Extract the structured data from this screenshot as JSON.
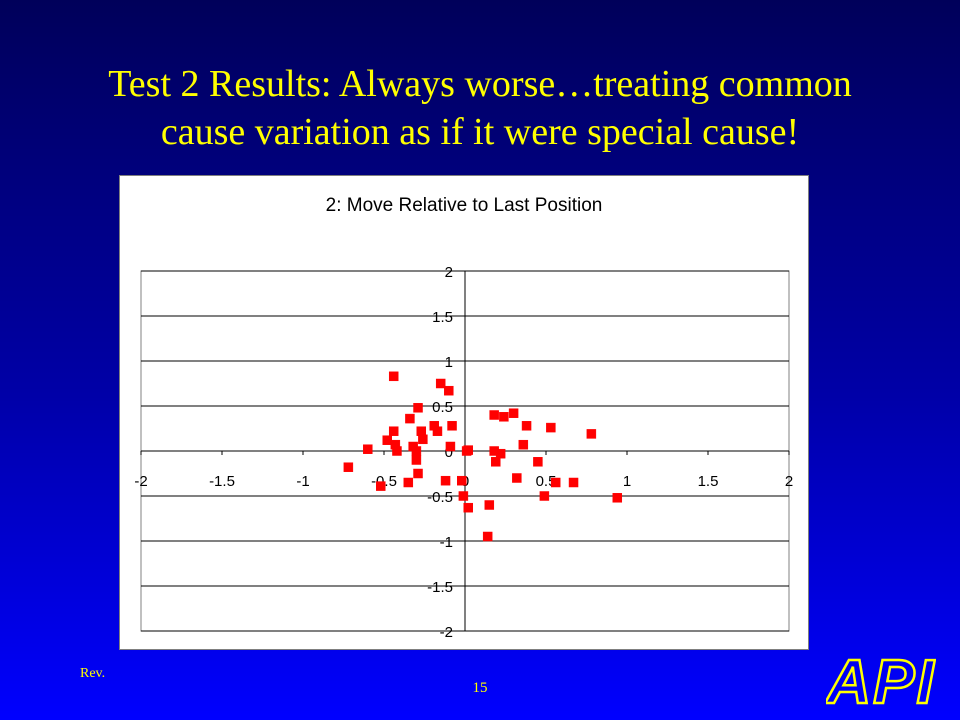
{
  "slide": {
    "title_line1": "Test 2 Results: Always worse…treating common",
    "title_line2": "cause variation as if it were special cause!",
    "footer_rev": "Rev.",
    "page_number": "15",
    "logo_text": "API",
    "title_color": "#ffff00",
    "background_top": "#00005a",
    "background_bottom": "#0000ff"
  },
  "chart_data": {
    "type": "scatter",
    "title": "2: Move Relative to Last Position",
    "xlabel": "",
    "ylabel": "",
    "xlim": [
      -2,
      2
    ],
    "ylim": [
      -2,
      2
    ],
    "x_ticks": [
      "-2",
      "-1.5",
      "-1",
      "-0.5",
      "0",
      "0.5",
      "1",
      "1.5",
      "2"
    ],
    "y_ticks": [
      "2",
      "1.5",
      "1",
      "0.5",
      "0",
      "-0.5",
      "-1",
      "-1.5",
      "-2"
    ],
    "grid": "horizontal",
    "marker_color": "#ff0000",
    "marker": "square",
    "series": [
      {
        "points": [
          [
            -0.72,
            -0.18
          ],
          [
            -0.6,
            0.02
          ],
          [
            -0.52,
            -0.39
          ],
          [
            -0.48,
            0.12
          ],
          [
            -0.44,
            0.83
          ],
          [
            -0.44,
            0.22
          ],
          [
            -0.43,
            0.07
          ],
          [
            -0.42,
            0.0
          ],
          [
            -0.35,
            -0.35
          ],
          [
            -0.34,
            0.36
          ],
          [
            -0.32,
            0.05
          ],
          [
            -0.3,
            -0.1
          ],
          [
            -0.3,
            0.0
          ],
          [
            -0.29,
            0.48
          ],
          [
            -0.29,
            -0.25
          ],
          [
            -0.27,
            0.22
          ],
          [
            -0.26,
            0.13
          ],
          [
            -0.19,
            0.28
          ],
          [
            -0.17,
            0.22
          ],
          [
            -0.15,
            0.75
          ],
          [
            -0.12,
            -0.33
          ],
          [
            -0.1,
            0.67
          ],
          [
            -0.09,
            0.05
          ],
          [
            -0.08,
            0.28
          ],
          [
            -0.02,
            -0.33
          ],
          [
            -0.01,
            -0.5
          ],
          [
            0.01,
            0.0
          ],
          [
            0.02,
            -0.63
          ],
          [
            0.02,
            0.01
          ],
          [
            0.14,
            -0.95
          ],
          [
            0.15,
            -0.6
          ],
          [
            0.18,
            0.4
          ],
          [
            0.18,
            0.0
          ],
          [
            0.19,
            -0.12
          ],
          [
            0.22,
            -0.03
          ],
          [
            0.24,
            0.38
          ],
          [
            0.3,
            0.42
          ],
          [
            0.32,
            -0.3
          ],
          [
            0.36,
            0.07
          ],
          [
            0.38,
            0.28
          ],
          [
            0.45,
            -0.12
          ],
          [
            0.49,
            -0.5
          ],
          [
            0.53,
            0.26
          ],
          [
            0.56,
            -0.35
          ],
          [
            0.67,
            -0.35
          ],
          [
            0.78,
            0.19
          ],
          [
            0.94,
            -0.52
          ]
        ]
      }
    ]
  }
}
